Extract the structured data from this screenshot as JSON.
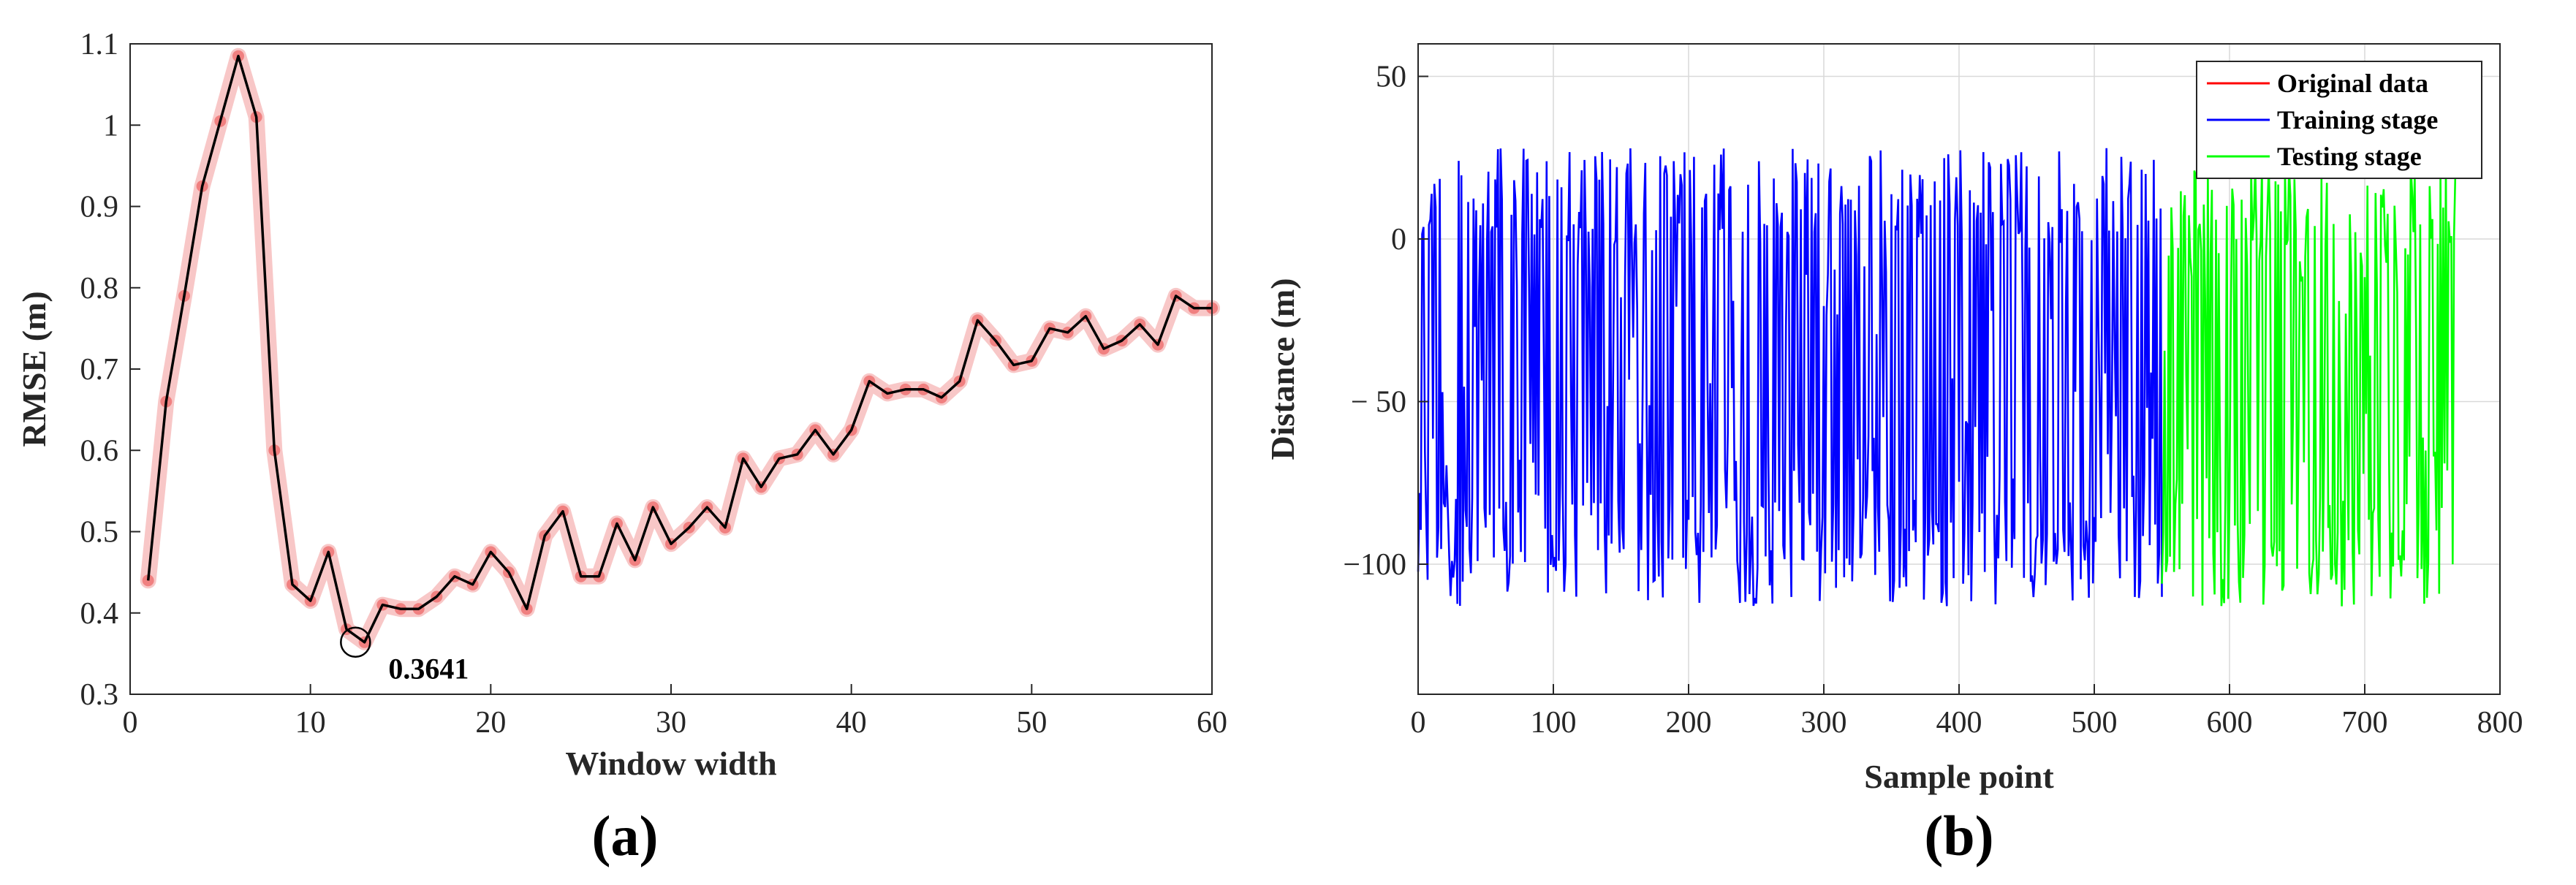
{
  "chart_data": [
    {
      "type": "line",
      "panel_label": "(a)",
      "xlabel": "Window width",
      "ylabel": "RMSE (m)",
      "xlim": [
        0,
        60
      ],
      "ylim": [
        0.3,
        1.1
      ],
      "xticks": [
        0,
        10,
        20,
        30,
        40,
        50,
        60
      ],
      "yticks": [
        0.3,
        0.4,
        0.5,
        0.6,
        0.7,
        0.8,
        0.9,
        1,
        1.1
      ],
      "grid": false,
      "colors": {
        "line": "#000000",
        "marker": "#f08080",
        "band": "#f5b4b4"
      },
      "series": [
        {
          "x": [
            1,
            2,
            3,
            4,
            5,
            6,
            7,
            8,
            9,
            10,
            11,
            12,
            13,
            14,
            15,
            16,
            17,
            18,
            19,
            20,
            21,
            22,
            23,
            24,
            25,
            26,
            27,
            28,
            29,
            30,
            31,
            32,
            33,
            34,
            35,
            36,
            37,
            38,
            39,
            40,
            41,
            42,
            43,
            44,
            45,
            46,
            47,
            48,
            49,
            50,
            51,
            52,
            53,
            54,
            55,
            56,
            57,
            58,
            59,
            60
          ],
          "values": [
            0.44,
            0.66,
            0.79,
            0.925,
            1.005,
            1.085,
            1.01,
            0.6,
            0.435,
            0.415,
            0.475,
            0.38,
            0.364,
            0.41,
            0.405,
            0.405,
            0.42,
            0.445,
            0.435,
            0.475,
            0.45,
            0.405,
            0.495,
            0.525,
            0.445,
            0.445,
            0.51,
            0.465,
            0.53,
            0.485,
            0.505,
            0.53,
            0.505,
            0.59,
            0.555,
            0.59,
            0.595,
            0.625,
            0.595,
            0.625,
            0.685,
            0.67,
            0.675,
            0.675,
            0.665,
            0.685,
            0.76,
            0.735,
            0.705,
            0.71,
            0.75,
            0.745,
            0.765,
            0.725,
            0.735,
            0.755,
            0.73,
            0.79,
            0.775,
            0.775
          ]
        }
      ],
      "annotation": {
        "text": "0.3641",
        "x": 12.5,
        "y": 0.3641
      }
    },
    {
      "type": "line",
      "panel_label": "(b)",
      "xlabel": "Sample point",
      "ylabel": "Distance (m)",
      "xlim": [
        0,
        800
      ],
      "ylim": [
        -140,
        60
      ],
      "xticks": [
        0,
        100,
        200,
        300,
        400,
        500,
        600,
        700,
        800
      ],
      "yticks": [
        50,
        0,
        -50,
        -100
      ],
      "ytick_labels": [
        "50",
        "0",
        "− 50",
        "−100"
      ],
      "grid": true,
      "legend_position": "top-right",
      "series": [
        {
          "name": "Original data",
          "color": "#ff0000",
          "x_range": [
            0,
            767
          ]
        },
        {
          "name": "Training stage",
          "color": "#0000ff",
          "x_range": [
            0,
            550
          ],
          "y_range": [
            -113,
            28
          ]
        },
        {
          "name": "Testing stage",
          "color": "#00ff00",
          "x_range": [
            550,
            767
          ],
          "y_range": [
            -113,
            23
          ]
        }
      ]
    }
  ]
}
